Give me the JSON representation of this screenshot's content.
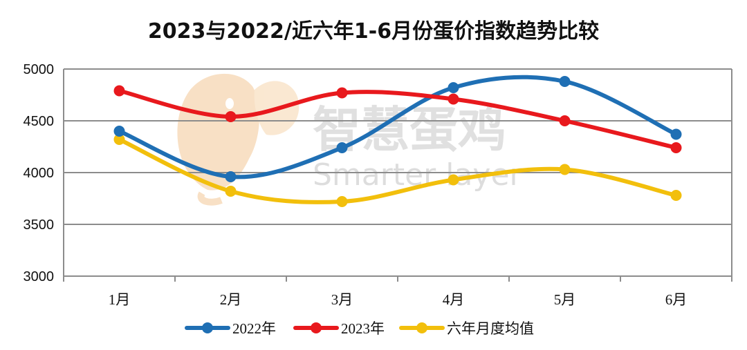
{
  "chart_data": {
    "type": "line",
    "title": "2023与2022/近六年1-6月份蛋价指数趋势比较",
    "categories": [
      "1月",
      "2月",
      "3月",
      "4月",
      "5月",
      "6月"
    ],
    "ylim": [
      3000,
      5000
    ],
    "yticks": [
      3000,
      3500,
      4000,
      4500,
      5000
    ],
    "grid": true,
    "smooth": true,
    "legend_position": "bottom",
    "series": [
      {
        "name": "2022年",
        "color": "#1f6fb4",
        "values": [
          4400,
          3960,
          4240,
          4820,
          4880,
          4370
        ]
      },
      {
        "name": "2023年",
        "color": "#e8191d",
        "values": [
          4790,
          4540,
          4770,
          4710,
          4500,
          4240
        ]
      },
      {
        "name": "六年月度均值",
        "color": "#f2bf0c",
        "values": [
          4320,
          3820,
          3720,
          3930,
          4030,
          3780
        ]
      }
    ]
  },
  "watermark": {
    "cn": "智慧蛋鸡",
    "en": "Smarter layer",
    "logo_icon": "chicken-head-logo"
  }
}
